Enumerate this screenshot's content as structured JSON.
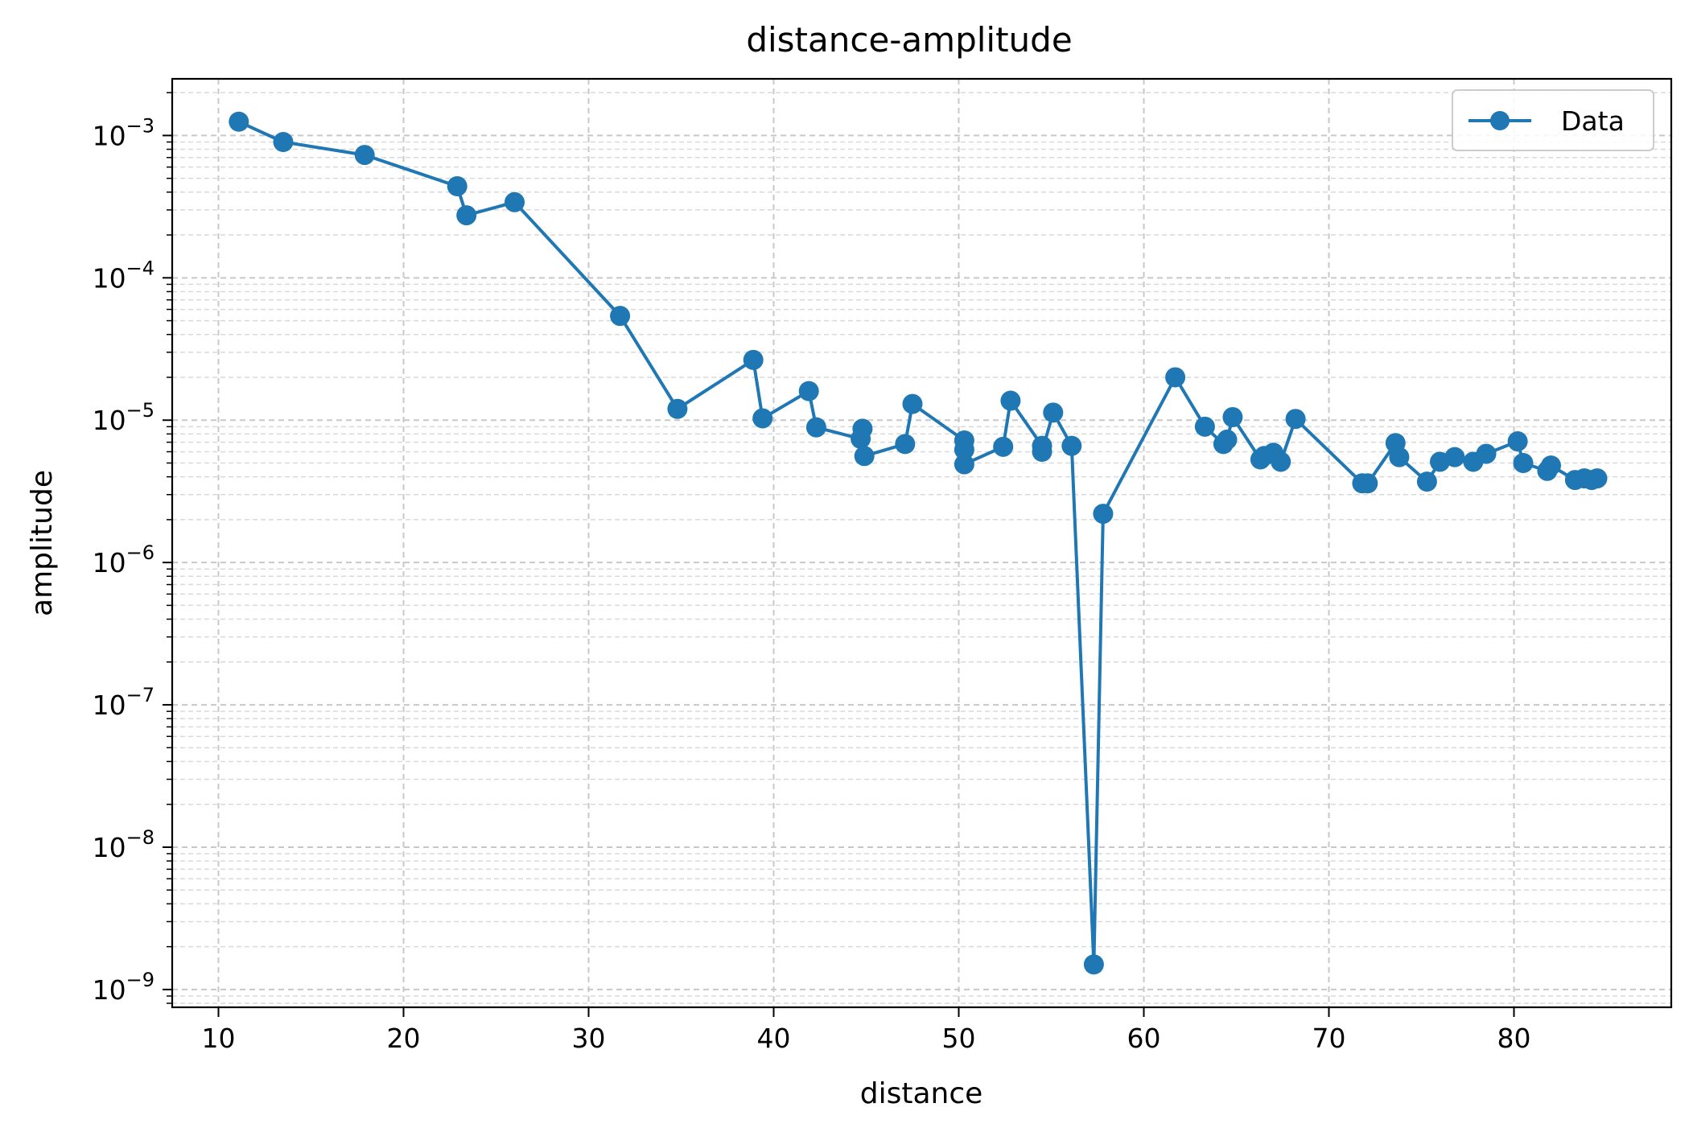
{
  "chart_data": {
    "type": "line",
    "title": "distance-amplitude",
    "xlabel": "distance",
    "ylabel": "amplitude",
    "x_scale": "linear",
    "y_scale": "log",
    "xlim": [
      7.5,
      88.5
    ],
    "ylim": [
      7.5e-10,
      0.0025
    ],
    "x_ticks": [
      10,
      20,
      30,
      40,
      50,
      60,
      70,
      80
    ],
    "x_tick_labels": [
      "10",
      "20",
      "30",
      "40",
      "50",
      "60",
      "70",
      "80"
    ],
    "y_ticks": [
      1e-09,
      1e-08,
      1e-07,
      1e-06,
      1e-05,
      0.0001,
      0.001
    ],
    "y_tick_labels": [
      {
        "base": "10",
        "exp": "−9"
      },
      {
        "base": "10",
        "exp": "−8"
      },
      {
        "base": "10",
        "exp": "−7"
      },
      {
        "base": "10",
        "exp": "−6"
      },
      {
        "base": "10",
        "exp": "−5"
      },
      {
        "base": "10",
        "exp": "−4"
      },
      {
        "base": "10",
        "exp": "−3"
      }
    ],
    "grid": true,
    "grid_minor": true,
    "legend_position": "top-right",
    "series": [
      {
        "name": "Data",
        "color": "#1f77b4",
        "marker": "circle",
        "x": [
          11.1,
          13.5,
          17.9,
          22.9,
          23.4,
          26.0,
          31.7,
          34.8,
          38.9,
          39.4,
          41.9,
          42.3,
          44.7,
          44.8,
          44.9,
          47.1,
          47.5,
          50.3,
          50.3,
          50.3,
          52.4,
          52.8,
          54.5,
          54.5,
          55.1,
          56.1,
          57.3,
          57.8,
          61.7,
          63.3,
          64.3,
          64.5,
          64.8,
          66.3,
          66.5,
          67.0,
          67.4,
          68.2,
          71.8,
          72.1,
          73.6,
          73.8,
          75.3,
          76.0,
          76.8,
          77.8,
          78.5,
          80.2,
          80.5,
          81.8,
          82.0,
          83.3,
          83.8,
          84.2,
          84.5
        ],
        "y": [
          0.00125,
          0.0009,
          0.00073,
          0.00044,
          0.000275,
          0.00034,
          5.4e-05,
          1.2e-05,
          2.65e-05,
          1.03e-05,
          1.6e-05,
          8.9e-06,
          7.4e-06,
          8.7e-06,
          5.6e-06,
          6.8e-06,
          1.3e-05,
          7.2e-06,
          6.2e-06,
          4.9e-06,
          6.5e-06,
          1.37e-05,
          6.6e-06,
          6e-06,
          1.13e-05,
          6.6e-06,
          1.5e-09,
          2.2e-06,
          2e-05,
          9e-06,
          6.8e-06,
          7.3e-06,
          1.05e-05,
          5.3e-06,
          5.6e-06,
          5.9e-06,
          5.1e-06,
          1.02e-05,
          3.6e-06,
          3.6e-06,
          6.9e-06,
          5.5e-06,
          3.7e-06,
          5.1e-06,
          5.5e-06,
          5.1e-06,
          5.8e-06,
          7.1e-06,
          5e-06,
          4.4e-06,
          4.8e-06,
          3.8e-06,
          3.9e-06,
          3.8e-06,
          3.9e-06
        ]
      }
    ]
  }
}
